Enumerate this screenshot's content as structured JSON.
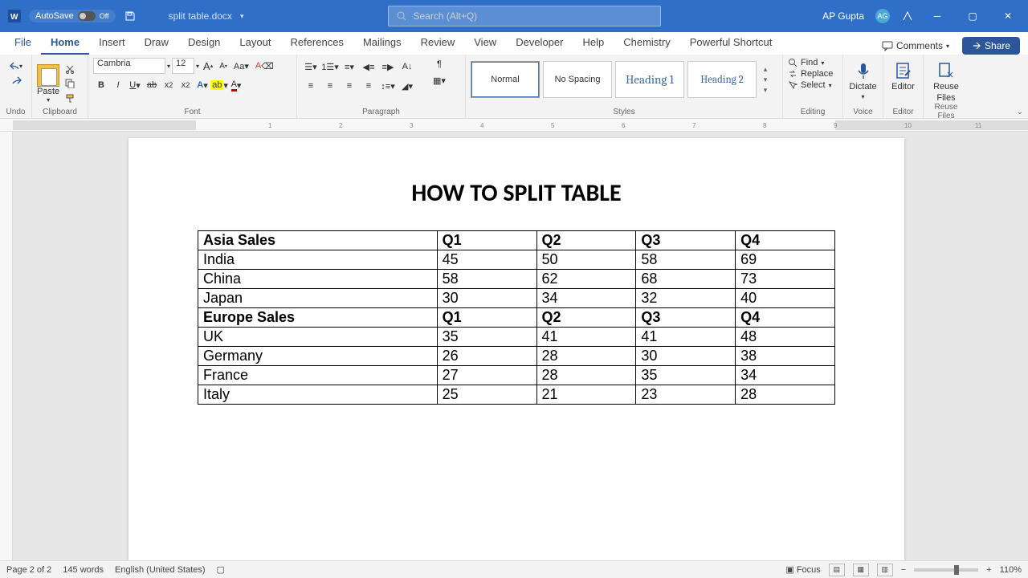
{
  "titlebar": {
    "autosave_label": "AutoSave",
    "autosave_state": "Off",
    "filename": "split table.docx",
    "search_placeholder": "Search (Alt+Q)",
    "user_name": "AP Gupta",
    "user_initials": "AG"
  },
  "tabs": {
    "items": [
      "File",
      "Home",
      "Insert",
      "Draw",
      "Design",
      "Layout",
      "References",
      "Mailings",
      "Review",
      "View",
      "Developer",
      "Help",
      "Chemistry",
      "Powerful Shortcut"
    ],
    "active": "Home",
    "comments_label": "Comments",
    "share_label": "Share"
  },
  "ribbon": {
    "undo_label": "Undo",
    "clipboard_label": "Clipboard",
    "paste_label": "Paste",
    "font_label": "Font",
    "font_name": "Cambria",
    "font_size": "12",
    "paragraph_label": "Paragraph",
    "styles_label": "Styles",
    "styles": {
      "normal": "Normal",
      "nospacing": "No Spacing",
      "h1": "Heading 1",
      "h2": "Heading 2"
    },
    "editing_label": "Editing",
    "find_label": "Find",
    "replace_label": "Replace",
    "select_label": "Select",
    "voice_label": "Voice",
    "dictate_label": "Dictate",
    "editor_label": "Editor",
    "reuse_label": "Reuse Files",
    "reuse_line1": "Reuse",
    "reuse_line2": "Files"
  },
  "document": {
    "title": "HOW TO SPLIT TABLE",
    "table": {
      "rows": [
        {
          "hdr": true,
          "cells": [
            "Asia Sales",
            "Q1",
            "Q2",
            "Q3",
            "Q4"
          ]
        },
        {
          "hdr": false,
          "cells": [
            "India",
            "45",
            "50",
            "58",
            "69"
          ]
        },
        {
          "hdr": false,
          "cells": [
            "China",
            "58",
            "62",
            "68",
            "73"
          ]
        },
        {
          "hdr": false,
          "cells": [
            "Japan",
            "30",
            "34",
            "32",
            "40"
          ]
        },
        {
          "hdr": true,
          "cells": [
            "Europe Sales",
            "Q1",
            "Q2",
            "Q3",
            "Q4"
          ]
        },
        {
          "hdr": false,
          "cells": [
            "UK",
            "35",
            "41",
            "41",
            "48"
          ]
        },
        {
          "hdr": false,
          "cells": [
            "Germany",
            "26",
            "28",
            "30",
            "38"
          ]
        },
        {
          "hdr": false,
          "cells": [
            "France",
            "27",
            "28",
            "35",
            "34"
          ]
        },
        {
          "hdr": false,
          "cells": [
            "Italy",
            "25",
            "21",
            "23",
            "28"
          ]
        }
      ]
    }
  },
  "statusbar": {
    "page_info": "Page 2 of 2",
    "word_count": "145 words",
    "language": "English (United States)",
    "focus_label": "Focus",
    "zoom_pct": "110%"
  },
  "colors": {
    "titlebar_bg": "#2F6FC8",
    "accent": "#2b579a",
    "ribbon_bg": "#f3f3f3"
  }
}
